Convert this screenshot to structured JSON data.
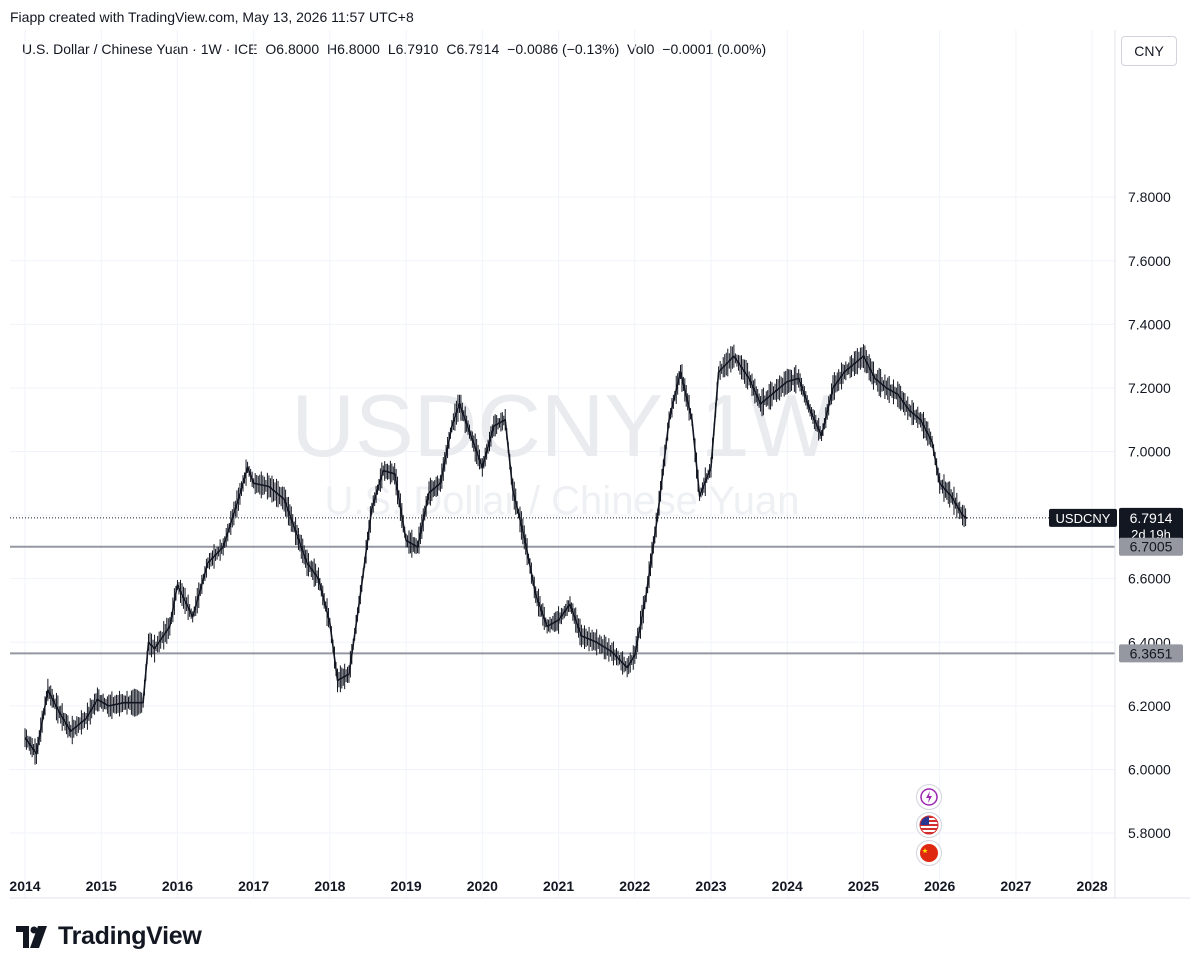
{
  "header": {
    "credit": "Fiapp created with TradingView.com, May 13, 2026 11:57 UTC+8",
    "symbol_desc": "U.S. Dollar / Chinese Yuan · 1W · ICE",
    "open": "O6.8000",
    "high": "H6.8000",
    "low": "L6.7910",
    "close": "C6.7914",
    "change": "−0.0086 (−0.13%)",
    "vol": "Vol0",
    "vol_change": "−0.0001 (0.00%)",
    "currency_button": "CNY"
  },
  "watermark": {
    "symbol": "USDCNY, 1W",
    "name": "U.S. Dollar / Chinese Yuan"
  },
  "price_tags": {
    "symbol": "USDCNY",
    "last": "6.7914",
    "countdown": "2d 19h",
    "level_upper": "6.7005",
    "level_lower": "6.3651"
  },
  "icons": [
    "lightning-icon",
    "us-flag-icon",
    "china-flag-icon"
  ],
  "footer": {
    "brand": "TradingView"
  },
  "colors": {
    "candle": "#131722",
    "grid": "#f0f3fa",
    "level_line": "#9598a1",
    "tag_dark": "#131722",
    "tag_gray": "#9598a1"
  },
  "chart_data": {
    "type": "line",
    "title": "",
    "xlabel": "",
    "ylabel": "",
    "x_ticks": [
      "2014",
      "2015",
      "2016",
      "2017",
      "2018",
      "2019",
      "2020",
      "2021",
      "2022",
      "2023",
      "2024",
      "2025",
      "2026",
      "2027",
      "2028"
    ],
    "y_ticks": [
      "5.8000",
      "6.0000",
      "6.2000",
      "6.4000",
      "6.6000",
      "6.8000",
      "7.0000",
      "7.2000",
      "7.4000",
      "7.6000",
      "7.8000"
    ],
    "xlim": [
      2014.0,
      2028.3
    ],
    "ylim": [
      5.69,
      8.2
    ],
    "grid": true,
    "horizontal_levels": [
      6.7005,
      6.3651
    ],
    "last_price": 6.7914,
    "series": [
      {
        "x": [
          2014.0,
          2014.15,
          2014.3,
          2014.45,
          2014.6,
          2014.8,
          2014.95,
          2015.1,
          2015.3,
          2015.55,
          2015.62,
          2015.7,
          2015.9,
          2016.0,
          2016.2,
          2016.4,
          2016.6,
          2016.8,
          2016.92,
          2017.0,
          2017.2,
          2017.4,
          2017.55,
          2017.7,
          2017.85,
          2018.0,
          2018.1,
          2018.25,
          2018.4,
          2018.55,
          2018.7,
          2018.85,
          2019.0,
          2019.15,
          2019.3,
          2019.45,
          2019.6,
          2019.7,
          2019.85,
          2020.0,
          2020.15,
          2020.3,
          2020.4,
          2020.55,
          2020.7,
          2020.85,
          2021.0,
          2021.15,
          2021.3,
          2021.5,
          2021.7,
          2021.9,
          2022.0,
          2022.15,
          2022.3,
          2022.45,
          2022.6,
          2022.75,
          2022.85,
          2023.0,
          2023.1,
          2023.3,
          2023.5,
          2023.65,
          2023.8,
          2024.0,
          2024.15,
          2024.3,
          2024.45,
          2024.6,
          2024.75,
          2024.9,
          2025.0,
          2025.15,
          2025.3,
          2025.45,
          2025.6,
          2025.75,
          2025.9,
          2026.0,
          2026.15,
          2026.3,
          2026.36
        ],
        "values": [
          6.1,
          6.05,
          6.25,
          6.18,
          6.12,
          6.16,
          6.22,
          6.2,
          6.21,
          6.21,
          6.4,
          6.38,
          6.45,
          6.58,
          6.48,
          6.65,
          6.7,
          6.85,
          6.95,
          6.9,
          6.89,
          6.85,
          6.75,
          6.65,
          6.6,
          6.46,
          6.28,
          6.3,
          6.55,
          6.82,
          6.94,
          6.93,
          6.72,
          6.7,
          6.87,
          6.9,
          7.08,
          7.15,
          7.05,
          6.95,
          7.08,
          7.1,
          6.88,
          6.73,
          6.55,
          6.45,
          6.47,
          6.52,
          6.42,
          6.4,
          6.37,
          6.32,
          6.36,
          6.55,
          6.8,
          7.1,
          7.25,
          7.1,
          6.86,
          6.95,
          7.25,
          7.3,
          7.23,
          7.15,
          7.18,
          7.22,
          7.23,
          7.13,
          7.05,
          7.2,
          7.25,
          7.28,
          7.3,
          7.23,
          7.2,
          7.18,
          7.13,
          7.1,
          7.03,
          6.9,
          6.86,
          6.8,
          6.79
        ]
      }
    ]
  }
}
